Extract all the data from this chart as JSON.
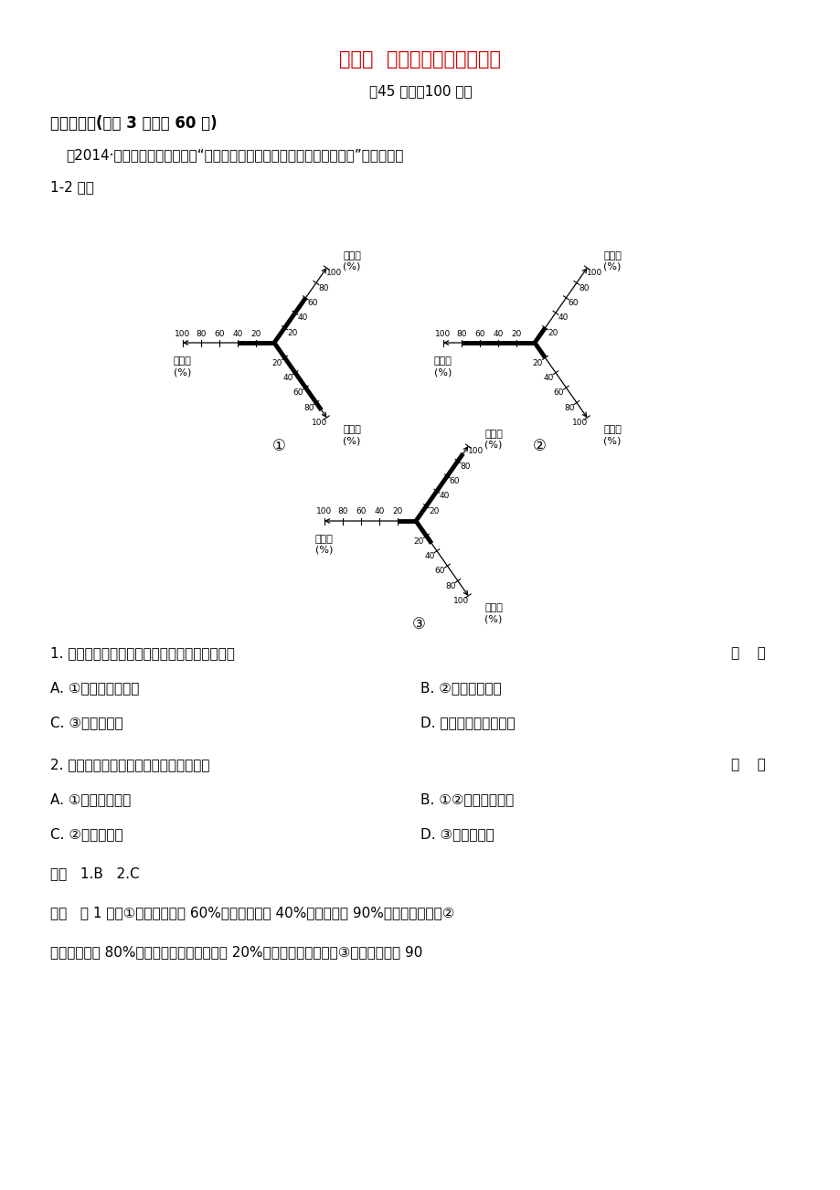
{
  "title": "第三章  农业地域的形成与发展",
  "subtitle": "（45 分钟，100 分）",
  "section1": "一、选择题(每题 3 分，共 60 分)",
  "preamble": "（2014·河北邯郸一模）下图为“三个地区农产品商品率和农业结构坐标图”。读图完成",
  "preamble2": "1-2 题。",
  "q1_text": "1. 有关三个地区农业地域类型的判断，正确的是",
  "q1_bracket": "（    ）",
  "q1_A": "A. ①为商品谷物农业",
  "q1_B": "B. ②为水稺种植业",
  "q1_C": "C. ③为混合农业",
  "q1_D": "D. 三地的商品率都很高",
  "q2_text": "2. 根据图中信息推断，下列说法正确的是",
  "q2_bracket": "（    ）",
  "q2_A": "A. ①市场适应性差",
  "q2_B": "B. ①②机械化水平高",
  "q2_C": "C. ②科技水平低",
  "q2_D": "D. ③生产规模小",
  "answer_line": "答案   1.B   2.C",
  "analysis_line1": "解析   第 1 题，①地畜牧业占近 60%、种植业约占 40%，商品率达 90%，为混合农业；②",
  "analysis_line2": "地种植业约占 80%，畜牧业和商品率都低于 20%，为水稺种植农业；③地畜牧业约占 90",
  "diagram1_label": "①",
  "diagram2_label": "②",
  "diagram3_label": "③",
  "background_color": "#ffffff",
  "title_color": "#cc0000",
  "text_color": "#000000"
}
